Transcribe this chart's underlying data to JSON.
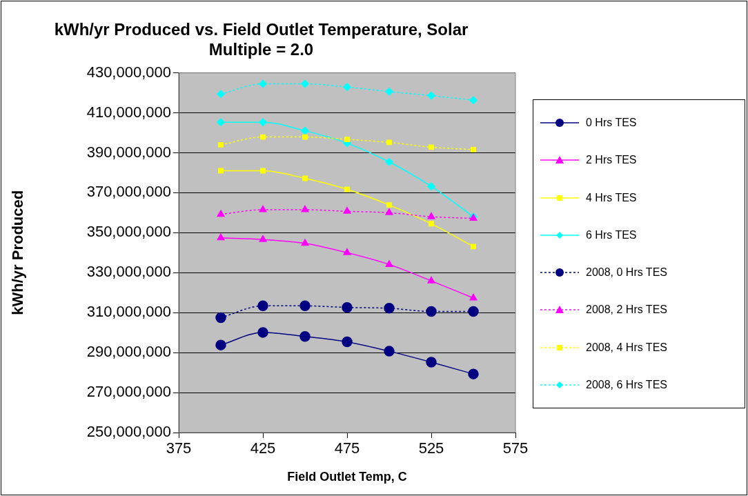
{
  "chart_data": {
    "type": "line",
    "title": "kWh/yr Produced vs. Field Outlet Temperature, Solar Multiple = 2.0",
    "xlabel": "Field Outlet Temp, C",
    "ylabel": "kWh/yr Produced",
    "x": [
      400,
      425,
      450,
      475,
      500,
      525,
      550
    ],
    "xlim": [
      375,
      575
    ],
    "xticks": [
      375,
      425,
      475,
      525,
      575
    ],
    "ylim": [
      250000000,
      430000000
    ],
    "yticks": [
      {
        "value": 250000000,
        "label": "250,000,000"
      },
      {
        "value": 270000000,
        "label": "270,000,000"
      },
      {
        "value": 290000000,
        "label": "290,000,000"
      },
      {
        "value": 310000000,
        "label": "310,000,000"
      },
      {
        "value": 330000000,
        "label": "330,000,000"
      },
      {
        "value": 350000000,
        "label": "350,000,000"
      },
      {
        "value": 370000000,
        "label": "370,000,000"
      },
      {
        "value": 390000000,
        "label": "390,000,000"
      },
      {
        "value": 410000000,
        "label": "410,000,000"
      },
      {
        "value": 430000000,
        "label": "430,000,000"
      }
    ],
    "grid": "y",
    "legend": "right",
    "series": [
      {
        "name": "0 Hrs TES",
        "color": "#000080",
        "marker": "circle",
        "line_style": "solid",
        "values": [
          293800000,
          300100000,
          298100000,
          295400000,
          290700000,
          285200000,
          279300000
        ]
      },
      {
        "name": "2 Hrs TES",
        "color": "#ff00ff",
        "marker": "triangle",
        "line_style": "solid",
        "values": [
          347400000,
          346600000,
          344700000,
          340000000,
          334100000,
          325900000,
          317300000
        ]
      },
      {
        "name": "4 Hrs TES",
        "color": "#ffff00",
        "marker": "square",
        "line_style": "solid",
        "values": [
          381000000,
          381000000,
          377200000,
          371700000,
          363900000,
          354500000,
          343100000
        ]
      },
      {
        "name": "6 Hrs TES",
        "color": "#00ffff",
        "marker": "diamond",
        "line_style": "solid",
        "values": [
          405300000,
          405300000,
          401000000,
          394800000,
          385400000,
          373200000,
          358000000
        ]
      },
      {
        "name": "2008, 0 Hrs TES",
        "color": "#000080",
        "marker": "circle",
        "line_style": "dotted",
        "values": [
          307500000,
          313400000,
          313400000,
          312600000,
          312200000,
          310600000,
          310600000
        ]
      },
      {
        "name": "2008, 2 Hrs TES",
        "color": "#ff00ff",
        "marker": "triangle",
        "line_style": "dotted",
        "values": [
          359200000,
          361500000,
          361500000,
          360700000,
          360000000,
          358000000,
          357200000
        ]
      },
      {
        "name": "2008, 4 Hrs TES",
        "color": "#ffff00",
        "marker": "square",
        "line_style": "dotted",
        "values": [
          394000000,
          397900000,
          397900000,
          396700000,
          395200000,
          392800000,
          391600000
        ]
      },
      {
        "name": "2008, 6 Hrs TES",
        "color": "#00ffff",
        "marker": "diamond",
        "line_style": "dotted",
        "values": [
          419400000,
          424500000,
          424500000,
          422900000,
          420600000,
          418600000,
          416300000
        ]
      }
    ]
  }
}
